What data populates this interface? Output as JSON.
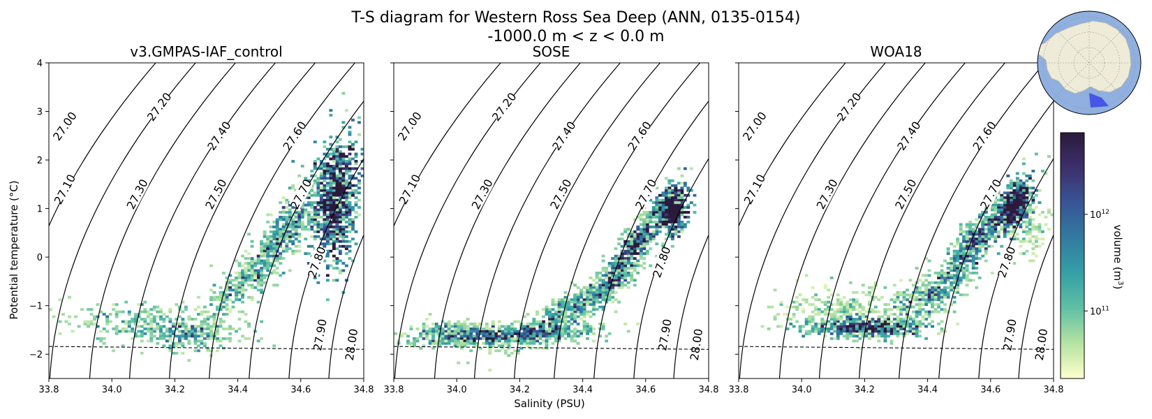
{
  "title_line1": "T-S diagram for Western Ross Sea Deep (ANN, 0135-0154)",
  "title_line2": "-1000.0 m < z < 0.0 m",
  "x_label": "Salinity (PSU)",
  "y_label": "Potential temperature (°C)",
  "colorbar": {
    "label": "volume (m³)",
    "label_parts": [
      "volume (m",
      "3",
      ")"
    ],
    "scale": "log",
    "ticks": [
      {
        "base": "10",
        "exp": "11",
        "value": 100000000000.0
      },
      {
        "base": "10",
        "exp": "12",
        "value": 1000000000000.0
      }
    ],
    "range": [
      20000000000.0,
      7000000000000.0
    ],
    "colors": [
      "#ffffcc",
      "#b5e3a2",
      "#5fc0a4",
      "#35a0a6",
      "#317ba1",
      "#385596",
      "#3d2f6b",
      "#2a1b3c"
    ]
  },
  "chart_data": [
    {
      "type": "heatmap",
      "title": "v3.GMPAS-IAF_control",
      "xlabel": "",
      "ylabel": "Potential temperature (°C)",
      "xlim": [
        33.8,
        34.8
      ],
      "ylim": [
        -2.5,
        4
      ],
      "xticks": [
        "33.8",
        "34.0",
        "34.2",
        "34.4",
        "34.6",
        "34.8"
      ],
      "yticks": [
        "4",
        "3",
        "2",
        "1",
        "0",
        "−1",
        "−2"
      ],
      "freezing_line": [
        [
          33.8,
          -1.84
        ],
        [
          34.8,
          -1.9
        ]
      ],
      "density_contours": [
        {
          "label": "27.00",
          "label_xy": [
            33.85,
            2.7
          ]
        },
        {
          "label": "27.10",
          "label_xy": [
            33.85,
            1.4
          ]
        },
        {
          "label": "27.20",
          "label_xy": [
            34.15,
            3.1
          ]
        },
        {
          "label": "27.30",
          "label_xy": [
            34.08,
            1.3
          ]
        },
        {
          "label": "27.40",
          "label_xy": [
            34.34,
            2.5
          ]
        },
        {
          "label": "27.50",
          "label_xy": [
            34.33,
            1.3
          ]
        },
        {
          "label": "27.60",
          "label_xy": [
            34.58,
            2.5
          ]
        },
        {
          "label": "27.70",
          "label_xy": [
            34.6,
            1.3
          ]
        },
        {
          "label": "27.80",
          "label_xy": [
            34.65,
            -0.1
          ]
        },
        {
          "label": "27.90",
          "label_xy": [
            34.66,
            -1.6
          ]
        },
        {
          "label": "28.00",
          "label_xy": [
            34.76,
            -1.8
          ]
        }
      ],
      "clusters": [
        {
          "s": 34.71,
          "t": 1.2,
          "ss": 0.035,
          "st": 0.65,
          "rho": 0.25,
          "n": 900,
          "w": 2.3
        },
        {
          "s": 34.56,
          "t": 0.6,
          "ss": 0.06,
          "st": 0.6,
          "rho": 0.85,
          "n": 500,
          "w": 0.7
        },
        {
          "s": 34.4,
          "t": -0.6,
          "ss": 0.07,
          "st": 0.45,
          "rho": 0.85,
          "n": 280,
          "w": 0.4
        },
        {
          "s": 34.12,
          "t": -1.4,
          "ss": 0.14,
          "st": 0.22,
          "rho": -0.3,
          "n": 320,
          "w": 0.6
        },
        {
          "s": 34.25,
          "t": -1.6,
          "ss": 0.06,
          "st": 0.12,
          "rho": 0,
          "n": 120,
          "w": 0.9
        }
      ]
    },
    {
      "type": "heatmap",
      "title": "SOSE",
      "xlabel": "Salinity (PSU)",
      "ylabel": "",
      "xlim": [
        33.8,
        34.8
      ],
      "ylim": [
        -2.5,
        4
      ],
      "xticks": [
        "33.8",
        "34.0",
        "34.2",
        "34.4",
        "34.6",
        "34.8"
      ],
      "yticks": [],
      "freezing_line": [
        [
          33.8,
          -1.84
        ],
        [
          34.8,
          -1.9
        ]
      ],
      "density_contours": [
        {
          "label": "27.00",
          "label_xy": [
            33.85,
            2.7
          ]
        },
        {
          "label": "27.10",
          "label_xy": [
            33.85,
            1.4
          ]
        },
        {
          "label": "27.20",
          "label_xy": [
            34.15,
            3.1
          ]
        },
        {
          "label": "27.30",
          "label_xy": [
            34.08,
            1.3
          ]
        },
        {
          "label": "27.40",
          "label_xy": [
            34.34,
            2.5
          ]
        },
        {
          "label": "27.50",
          "label_xy": [
            34.33,
            1.3
          ]
        },
        {
          "label": "27.60",
          "label_xy": [
            34.58,
            2.5
          ]
        },
        {
          "label": "27.70",
          "label_xy": [
            34.6,
            1.3
          ]
        },
        {
          "label": "27.80",
          "label_xy": [
            34.65,
            -0.1
          ]
        },
        {
          "label": "27.90",
          "label_xy": [
            34.66,
            -1.6
          ]
        },
        {
          "label": "28.00",
          "label_xy": [
            34.76,
            -1.8
          ]
        }
      ],
      "clusters": [
        {
          "s": 34.69,
          "t": 1.0,
          "ss": 0.025,
          "st": 0.25,
          "rho": 0.3,
          "n": 380,
          "w": 2.4
        },
        {
          "s": 34.55,
          "t": 0.1,
          "ss": 0.06,
          "st": 0.55,
          "rho": 0.9,
          "n": 650,
          "w": 0.8
        },
        {
          "s": 34.35,
          "t": -1.1,
          "ss": 0.1,
          "st": 0.4,
          "rho": 0.9,
          "n": 550,
          "w": 0.4
        },
        {
          "s": 34.15,
          "t": -1.6,
          "ss": 0.15,
          "st": 0.12,
          "rho": 0.3,
          "n": 650,
          "w": 0.6
        },
        {
          "s": 34.0,
          "t": -1.55,
          "ss": 0.07,
          "st": 0.12,
          "rho": 0,
          "n": 200,
          "w": 0.1
        }
      ]
    },
    {
      "type": "heatmap",
      "title": "WOA18",
      "xlabel": "",
      "ylabel": "",
      "xlim": [
        33.8,
        34.8
      ],
      "ylim": [
        -2.5,
        4
      ],
      "xticks": [
        "33.8",
        "34.0",
        "34.2",
        "34.4",
        "34.6",
        "34.8"
      ],
      "yticks": [],
      "freezing_line": [
        [
          33.8,
          -1.84
        ],
        [
          34.8,
          -1.9
        ]
      ],
      "density_contours": [
        {
          "label": "27.00",
          "label_xy": [
            33.85,
            2.7
          ]
        },
        {
          "label": "27.10",
          "label_xy": [
            33.85,
            1.4
          ]
        },
        {
          "label": "27.20",
          "label_xy": [
            34.15,
            3.1
          ]
        },
        {
          "label": "27.30",
          "label_xy": [
            34.08,
            1.3
          ]
        },
        {
          "label": "27.40",
          "label_xy": [
            34.34,
            2.5
          ]
        },
        {
          "label": "27.50",
          "label_xy": [
            34.33,
            1.3
          ]
        },
        {
          "label": "27.60",
          "label_xy": [
            34.58,
            2.5
          ]
        },
        {
          "label": "27.70",
          "label_xy": [
            34.6,
            1.3
          ]
        },
        {
          "label": "27.80",
          "label_xy": [
            34.65,
            -0.1
          ]
        },
        {
          "label": "27.90",
          "label_xy": [
            34.66,
            -1.6
          ]
        },
        {
          "label": "28.00",
          "label_xy": [
            34.76,
            -1.8
          ]
        }
      ],
      "clusters": [
        {
          "s": 34.68,
          "t": 1.1,
          "ss": 0.03,
          "st": 0.3,
          "rho": 0.6,
          "n": 420,
          "w": 2.1
        },
        {
          "s": 34.55,
          "t": 0.3,
          "ss": 0.06,
          "st": 0.5,
          "rho": 0.85,
          "n": 550,
          "w": 0.8
        },
        {
          "s": 34.4,
          "t": -0.8,
          "ss": 0.07,
          "st": 0.35,
          "rho": 0.7,
          "n": 380,
          "w": 0.5
        },
        {
          "s": 34.2,
          "t": -1.45,
          "ss": 0.1,
          "st": 0.1,
          "rho": 0,
          "n": 520,
          "w": 0.9
        },
        {
          "s": 34.15,
          "t": -1.1,
          "ss": 0.1,
          "st": 0.25,
          "rho": 0,
          "n": 300,
          "w": 0.0
        },
        {
          "s": 34.72,
          "t": 0.6,
          "ss": 0.04,
          "st": 0.3,
          "rho": 0,
          "n": 120,
          "w": 0.0
        }
      ]
    }
  ]
}
